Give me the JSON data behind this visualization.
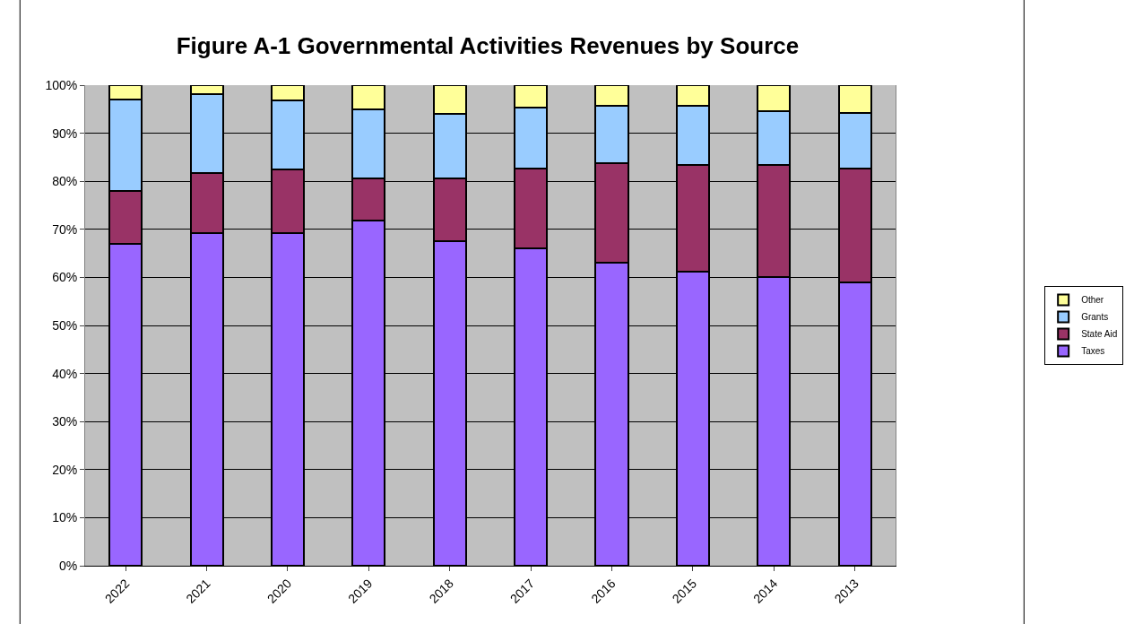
{
  "chart_data": {
    "type": "bar",
    "title": "Figure A-1 Governmental Activities Revenues by Source",
    "categories": [
      "2022",
      "2021",
      "2020",
      "2019",
      "2018",
      "2017",
      "2016",
      "2015",
      "2014",
      "2013"
    ],
    "stacked": true,
    "series": [
      {
        "name": "Taxes",
        "color": "#9966ff",
        "values": [
          67,
          69.3,
          69.3,
          71.8,
          67.5,
          66.1,
          63,
          61.2,
          60.1,
          59
        ]
      },
      {
        "name": "State Aid",
        "color": "#993366",
        "values": [
          11,
          12.4,
          13.1,
          8.8,
          13.1,
          16.6,
          20.8,
          22.2,
          23.3,
          23.7
        ]
      },
      {
        "name": "Grants",
        "color": "#99ccff",
        "values": [
          19,
          16.5,
          14.4,
          14.4,
          13.4,
          12.7,
          11.9,
          12.3,
          11.2,
          11.6
        ]
      },
      {
        "name": "Other",
        "color": "#ffff99",
        "values": [
          3,
          1.8,
          3.2,
          5,
          6,
          4.6,
          4.3,
          4.3,
          5.4,
          5.7
        ]
      }
    ],
    "ylim": [
      0,
      100
    ],
    "yticks": [
      {
        "value": 0,
        "label": "0%"
      },
      {
        "value": 10,
        "label": "10%"
      },
      {
        "value": 20,
        "label": "20%"
      },
      {
        "value": 30,
        "label": "30%"
      },
      {
        "value": 40,
        "label": "40%"
      },
      {
        "value": 50,
        "label": "50%"
      },
      {
        "value": 60,
        "label": "60%"
      },
      {
        "value": 70,
        "label": "70%"
      },
      {
        "value": 80,
        "label": "80%"
      },
      {
        "value": 90,
        "label": "90%"
      },
      {
        "value": 100,
        "label": "100%"
      }
    ],
    "grid": "y",
    "legend": "right"
  }
}
